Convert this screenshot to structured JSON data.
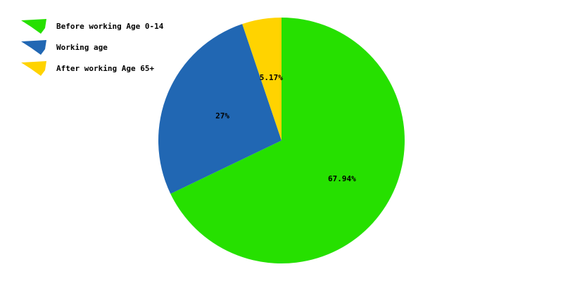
{
  "chart_data": {
    "type": "pie",
    "title": "",
    "legend_position": "top-left",
    "slices": [
      {
        "label": "Before working Age 0-14",
        "value": 67.94,
        "value_label": "67.94%",
        "color": "#26e000"
      },
      {
        "label": "Working age",
        "value": 27,
        "value_label": "27%",
        "color": "#2167b3"
      },
      {
        "label": "After working Age 65+",
        "value": 5.17,
        "value_label": "5.17%",
        "color": "#ffd300"
      }
    ]
  }
}
